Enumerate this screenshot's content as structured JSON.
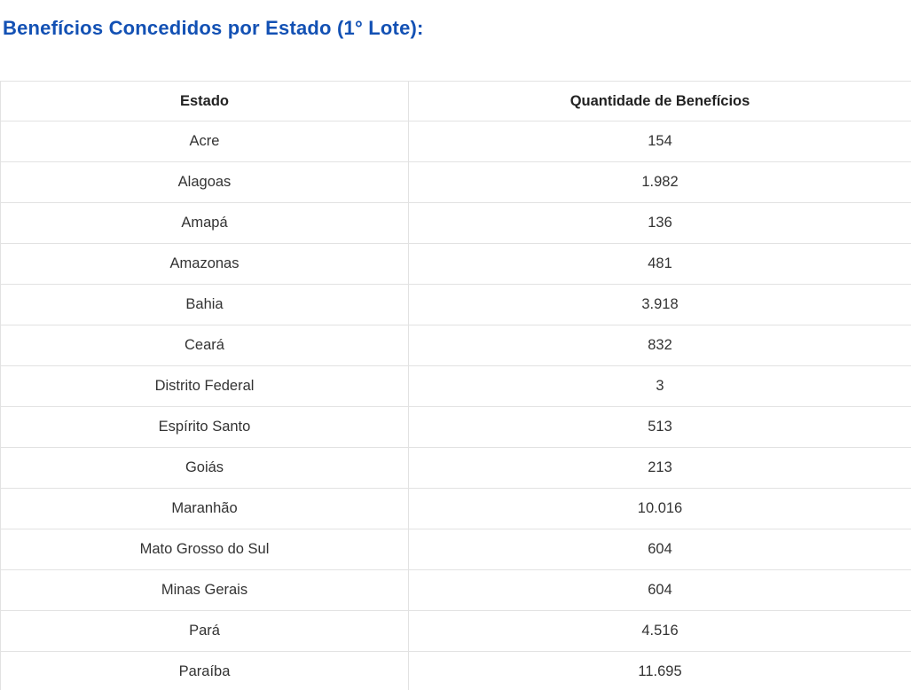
{
  "page": {
    "title": "Benefícios Concedidos por Estado (1° Lote):"
  },
  "table": {
    "columns": [
      "Estado",
      "Quantidade de Benefícios"
    ],
    "rows": [
      {
        "state": "Acre",
        "quantity": "154"
      },
      {
        "state": "Alagoas",
        "quantity": "1.982"
      },
      {
        "state": "Amapá",
        "quantity": "136"
      },
      {
        "state": "Amazonas",
        "quantity": "481"
      },
      {
        "state": "Bahia",
        "quantity": "3.918"
      },
      {
        "state": "Ceará",
        "quantity": "832"
      },
      {
        "state": "Distrito Federal",
        "quantity": "3"
      },
      {
        "state": "Espírito Santo",
        "quantity": "513"
      },
      {
        "state": "Goiás",
        "quantity": "213"
      },
      {
        "state": "Maranhão",
        "quantity": "10.016"
      },
      {
        "state": "Mato Grosso do Sul",
        "quantity": "604"
      },
      {
        "state": "Minas Gerais",
        "quantity": "604"
      },
      {
        "state": "Pará",
        "quantity": "4.516"
      },
      {
        "state": "Paraíba",
        "quantity": "11.695"
      }
    ]
  },
  "colors": {
    "title_blue": "#1351b4",
    "border_gray": "#e2e2e2",
    "header_text": "#222222",
    "cell_text": "#333333",
    "background": "#ffffff"
  }
}
